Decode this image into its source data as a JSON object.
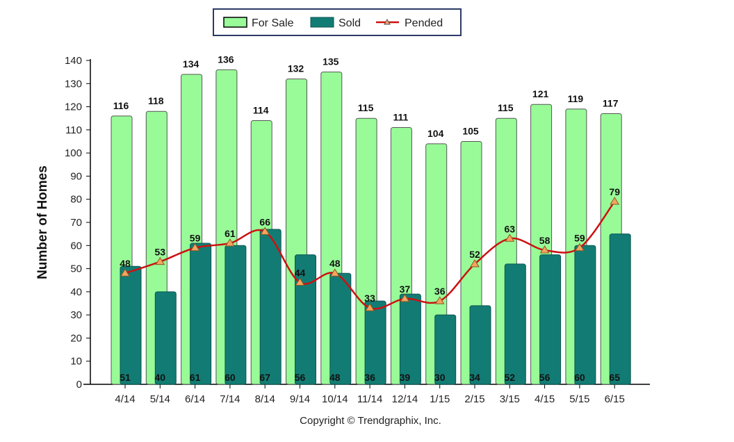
{
  "chart_data": {
    "type": "bar",
    "title": "",
    "xlabel": "",
    "ylabel": "Number of Homes",
    "ylim": [
      0,
      140
    ],
    "yticks": [
      0,
      10,
      20,
      30,
      40,
      50,
      60,
      70,
      80,
      90,
      100,
      110,
      120,
      130,
      140
    ],
    "grid": false,
    "legend_position": "top",
    "categories": [
      "4/14",
      "5/14",
      "6/14",
      "7/14",
      "8/14",
      "9/14",
      "10/14",
      "11/14",
      "12/14",
      "1/15",
      "2/15",
      "3/15",
      "4/15",
      "5/15",
      "6/15"
    ],
    "series": [
      {
        "name": "For Sale",
        "kind": "bar",
        "color": "#98FB98",
        "values": [
          116,
          118,
          134,
          136,
          114,
          132,
          135,
          115,
          111,
          104,
          105,
          115,
          121,
          119,
          117
        ]
      },
      {
        "name": "Sold",
        "kind": "bar",
        "color": "#127C74",
        "values": [
          51,
          40,
          61,
          60,
          67,
          56,
          48,
          36,
          39,
          30,
          34,
          52,
          56,
          60,
          65
        ]
      },
      {
        "name": "Pended",
        "kind": "line",
        "color": "#CC1111",
        "marker": "triangle",
        "marker_color": "#F4A460",
        "values": [
          48,
          53,
          59,
          61,
          66,
          44,
          48,
          33,
          37,
          36,
          52,
          63,
          58,
          59,
          79
        ]
      }
    ]
  },
  "footer": {
    "copyright": "Copyright © Trendgraphix, Inc."
  }
}
